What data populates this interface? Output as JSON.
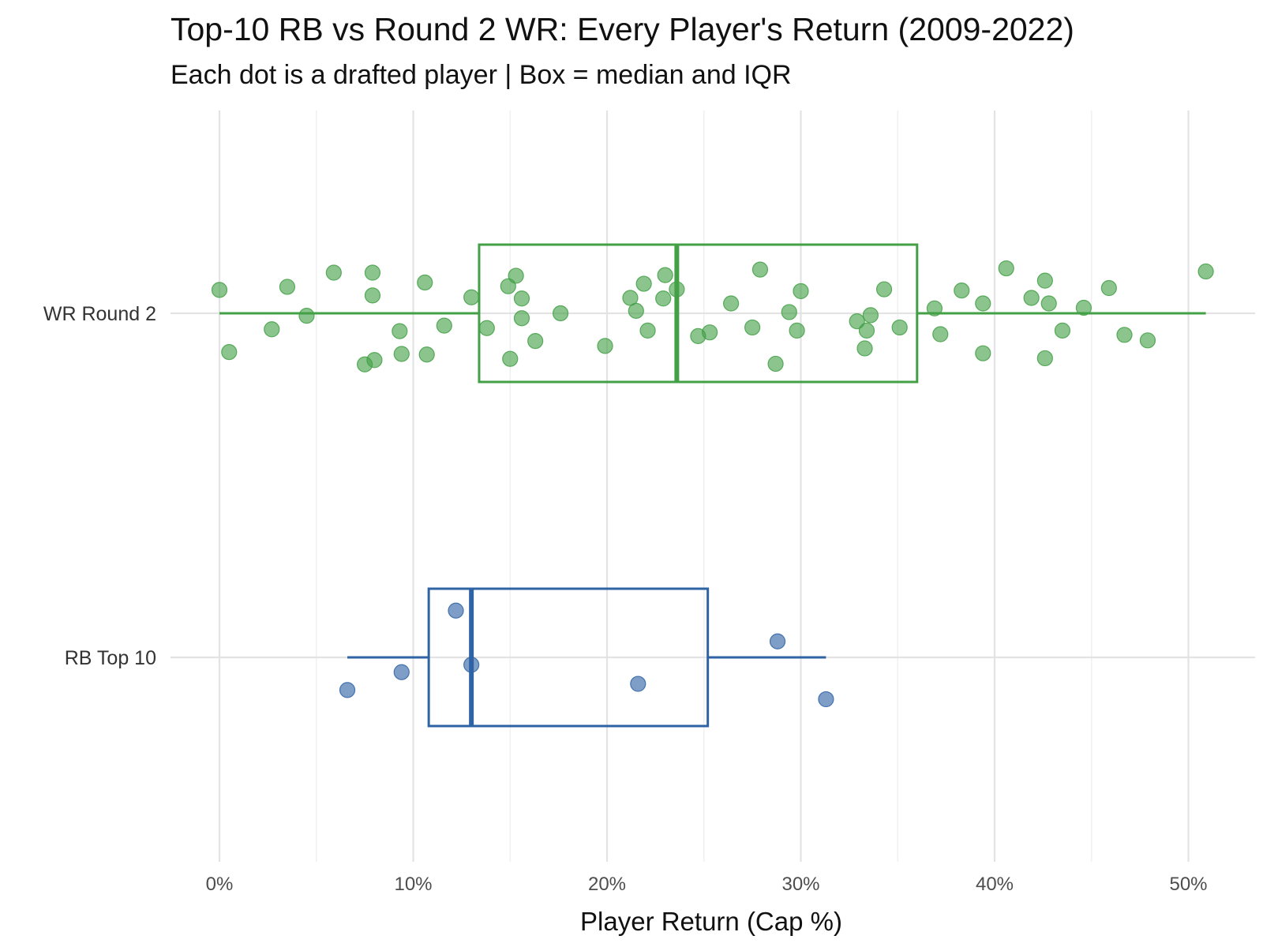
{
  "chart_data": {
    "type": "box_with_jitter",
    "title": "Top-10 RB vs Round 2 WR: Every Player's Return (2009-2022)",
    "subtitle": "Each dot is a drafted player | Box = median and IQR",
    "xlabel": "Player Return (Cap %)",
    "ylabel": "",
    "xlim": [
      0,
      51
    ],
    "x_ticks": [
      {
        "value": 0,
        "label": "0%"
      },
      {
        "value": 10,
        "label": "10%"
      },
      {
        "value": 20,
        "label": "20%"
      },
      {
        "value": 30,
        "label": "30%"
      },
      {
        "value": 40,
        "label": "40%"
      },
      {
        "value": 50,
        "label": "50%"
      }
    ],
    "grid": true,
    "series": [
      {
        "name": "WR Round 2",
        "color": "#43a047",
        "box": {
          "min": 0,
          "q1": 13.4,
          "median": 23.6,
          "q3": 36.0,
          "max": 50.9
        },
        "points": [
          [
            0.0,
            0.38
          ],
          [
            0.5,
            -0.63
          ],
          [
            2.7,
            -0.26
          ],
          [
            3.5,
            0.43
          ],
          [
            4.5,
            -0.04
          ],
          [
            5.9,
            0.66
          ],
          [
            7.5,
            -0.83
          ],
          [
            7.9,
            0.66
          ],
          [
            7.9,
            0.29
          ],
          [
            8.0,
            -0.76
          ],
          [
            9.3,
            -0.29
          ],
          [
            9.4,
            -0.66
          ],
          [
            10.6,
            0.5
          ],
          [
            10.7,
            -0.67
          ],
          [
            11.6,
            -0.2
          ],
          [
            13.0,
            0.26
          ],
          [
            13.8,
            -0.24
          ],
          [
            14.9,
            0.44
          ],
          [
            15.0,
            -0.74
          ],
          [
            15.3,
            0.61
          ],
          [
            15.6,
            0.24
          ],
          [
            15.6,
            -0.08
          ],
          [
            16.3,
            -0.45
          ],
          [
            17.6,
            0.0
          ],
          [
            19.9,
            -0.53
          ],
          [
            21.2,
            0.25
          ],
          [
            21.5,
            0.04
          ],
          [
            21.9,
            0.48
          ],
          [
            22.1,
            -0.28
          ],
          [
            22.9,
            0.24
          ],
          [
            23.0,
            0.62
          ],
          [
            23.6,
            0.39
          ],
          [
            24.7,
            -0.37
          ],
          [
            25.3,
            -0.31
          ],
          [
            26.4,
            0.16
          ],
          [
            27.5,
            -0.23
          ],
          [
            27.9,
            0.71
          ],
          [
            28.7,
            -0.82
          ],
          [
            29.4,
            0.02
          ],
          [
            29.8,
            -0.28
          ],
          [
            30.0,
            0.36
          ],
          [
            32.9,
            -0.13
          ],
          [
            33.3,
            -0.57
          ],
          [
            33.4,
            -0.28
          ],
          [
            33.6,
            -0.03
          ],
          [
            34.3,
            0.39
          ],
          [
            35.1,
            -0.23
          ],
          [
            36.9,
            0.08
          ],
          [
            37.2,
            -0.34
          ],
          [
            38.3,
            0.37
          ],
          [
            39.4,
            0.16
          ],
          [
            39.4,
            -0.65
          ],
          [
            40.6,
            0.73
          ],
          [
            41.9,
            0.25
          ],
          [
            42.6,
            0.53
          ],
          [
            42.6,
            -0.73
          ],
          [
            42.8,
            0.16
          ],
          [
            43.5,
            -0.28
          ],
          [
            44.6,
            0.09
          ],
          [
            45.9,
            0.41
          ],
          [
            46.7,
            -0.35
          ],
          [
            47.9,
            -0.44
          ],
          [
            50.9,
            0.68
          ]
        ]
      },
      {
        "name": "RB Top 10",
        "color": "#2e63a4",
        "box": {
          "min": 6.6,
          "q1": 10.8,
          "median": 13.0,
          "q3": 25.2,
          "max": 31.3
        },
        "points": [
          [
            6.6,
            -0.53
          ],
          [
            9.4,
            -0.24
          ],
          [
            12.2,
            0.76
          ],
          [
            13.0,
            -0.12
          ],
          [
            21.6,
            -0.43
          ],
          [
            28.8,
            0.26
          ],
          [
            31.3,
            -0.68
          ]
        ]
      }
    ]
  }
}
